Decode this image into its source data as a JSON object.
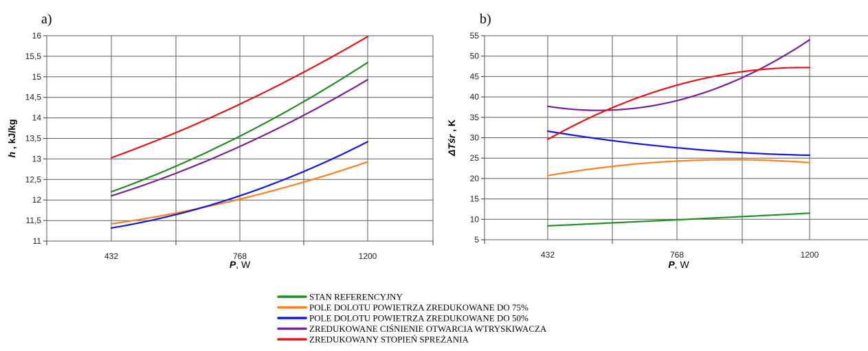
{
  "chart_data": [
    {
      "panel": "a)",
      "type": "line",
      "categories": [
        "432",
        "768",
        "1200"
      ],
      "x": [
        432,
        768,
        1200
      ],
      "xlabel_symbol": "P",
      "xlabel_unit": ", W",
      "ylabel_symbol": "h",
      "ylabel_unit": " , kJ/kg",
      "ylim": [
        11,
        16
      ],
      "yticks": [
        "11",
        "11,5",
        "12",
        "12,5",
        "13",
        "13,5",
        "14",
        "14,5",
        "15",
        "15,5",
        "16"
      ],
      "grid": true,
      "series": [
        {
          "name": "STAN REFERENCYJNY",
          "color": "#1f8f1f",
          "values": [
            12.2,
            13.55,
            15.35
          ]
        },
        {
          "name": "POLE DOLOTU POWIETRZA ZREDUKOWANE DO 75%",
          "color": "#ff7f1e",
          "values": [
            11.42,
            12.02,
            12.93
          ]
        },
        {
          "name": "POLE DOLOTU POWIETRZA ZREDUKOWANE DO 50%",
          "color": "#1515e0",
          "values": [
            11.32,
            12.1,
            13.42
          ]
        },
        {
          "name": "ZREDUKOWANE CIŚNIENIE OTWARCIA WTRYSKIWACZA",
          "color": "#7a1f9a",
          "values": [
            12.1,
            13.3,
            14.93
          ]
        },
        {
          "name": "ZREDUKOWANY STOPIEŃ SPREŻANIA",
          "color": "#ee1111",
          "values": [
            13.03,
            14.33,
            15.98
          ]
        }
      ]
    },
    {
      "panel": "b)",
      "type": "line",
      "categories": [
        "432",
        "768",
        "1200"
      ],
      "x": [
        432,
        768,
        1200
      ],
      "xlabel_symbol": "P",
      "xlabel_unit": ", W",
      "ylabel_symbol": "ΔTśr",
      "ylabel_unit": " , K",
      "ylim": [
        5,
        55
      ],
      "yticks": [
        "5",
        "10",
        "15",
        "20",
        "25",
        "30",
        "35",
        "40",
        "45",
        "50",
        "55"
      ],
      "grid": true,
      "series": [
        {
          "name": "STAN REFERENCYJNY",
          "color": "#1f8f1f",
          "values": [
            8.4,
            9.9,
            11.5
          ]
        },
        {
          "name": "POLE DOLOTU POWIETRZA ZREDUKOWANE DO 75%",
          "color": "#ff7f1e",
          "values": [
            20.7,
            24.3,
            23.9
          ]
        },
        {
          "name": "POLE DOLOTU POWIETRZA ZREDUKOWANE DO 50%",
          "color": "#1515e0",
          "values": [
            31.6,
            27.5,
            25.7
          ]
        },
        {
          "name": "ZREDUKOWANE CIŚNIENIE OTWARCIA WTRYSKIWACZA",
          "color": "#7a1f9a",
          "values": [
            37.7,
            39.2,
            54.0
          ]
        },
        {
          "name": "ZREDUKOWANY STOPIEŃ SPREŻANIA",
          "color": "#ee1111",
          "values": [
            29.6,
            43.0,
            47.2
          ]
        }
      ]
    }
  ],
  "legend": {
    "placement": "bottom-center",
    "items": [
      {
        "label": "STAN REFERENCYJNY",
        "color": "#1f8f1f"
      },
      {
        "label": "POLE DOLOTU POWIETRZA ZREDUKOWANE DO 75%",
        "color": "#ff7f1e"
      },
      {
        "label": "POLE DOLOTU POWIETRZA ZREDUKOWANE DO 50%",
        "color": "#1515e0"
      },
      {
        "label": "ZREDUKOWANE CIŚNIENIE OTWARCIA WTRYSKIWACZA",
        "color": "#7a1f9a"
      },
      {
        "label": "ZREDUKOWANY STOPIEŃ SPREŻANIA",
        "color": "#ee1111"
      }
    ]
  }
}
